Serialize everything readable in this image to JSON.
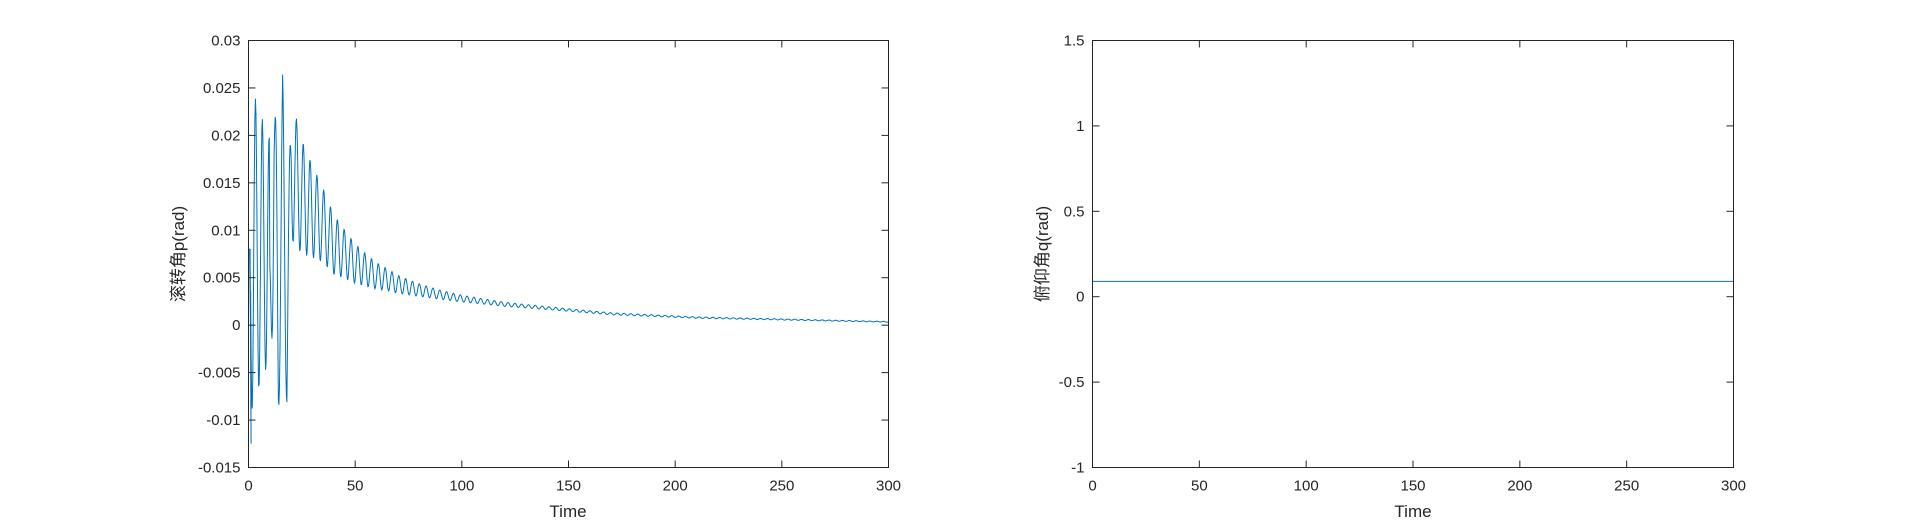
{
  "chart_data": [
    {
      "type": "line",
      "title": "",
      "xlabel": "Time",
      "ylabel": "滚转角p(rad)",
      "xlim": [
        0,
        300
      ],
      "ylim": [
        -0.015,
        0.03
      ],
      "xticks": [
        0,
        50,
        100,
        150,
        200,
        250,
        300
      ],
      "yticks": [
        -0.015,
        -0.01,
        -0.005,
        0,
        0.005,
        0.01,
        0.015,
        0.02,
        0.025,
        0.03
      ],
      "xtick_labels": [
        "0",
        "50",
        "100",
        "150",
        "200",
        "250",
        "300"
      ],
      "ytick_labels": [
        "-0.015",
        "-0.01",
        "-0.005",
        "0",
        "0.005",
        "0.01",
        "0.015",
        "0.02",
        "0.025",
        "0.03"
      ],
      "grid": false,
      "series": [
        {
          "color": "#0072BD",
          "description": "decaying oscillation",
          "x": [
            0,
            1,
            2,
            3,
            4,
            5,
            6,
            7,
            8,
            9,
            10,
            12,
            14,
            16,
            18,
            20,
            25,
            30,
            35,
            40,
            45,
            50,
            55,
            60,
            65,
            70,
            75,
            80,
            90,
            100,
            110,
            120,
            130,
            140,
            150,
            160,
            170,
            180,
            190,
            200,
            210,
            220,
            230,
            240,
            250,
            260,
            270,
            280,
            290,
            300
          ],
          "y": [
            0.0,
            0.026,
            -0.011,
            0.027,
            -0.006,
            0.024,
            -0.0055,
            0.022,
            -0.004,
            0.021,
            -0.003,
            0.0195,
            -0.002,
            0.0175,
            -0.0015,
            0.0165,
            0.0135,
            0.012,
            0.0105,
            0.0085,
            0.0075,
            0.0065,
            0.0058,
            0.0052,
            0.0048,
            0.0043,
            0.004,
            0.0037,
            0.0032,
            0.0028,
            0.0025,
            0.0022,
            0.002,
            0.0018,
            0.0016,
            0.0014,
            0.0012,
            0.0011,
            0.001,
            0.0009,
            0.0008,
            0.00075,
            0.0007,
            0.00065,
            0.0006,
            0.00055,
            0.0005,
            0.00045,
            0.0004,
            0.00035
          ],
          "envelope_note": ""
        }
      ]
    },
    {
      "type": "line",
      "title": "",
      "xlabel": "Time",
      "ylabel": "俯仰角q(rad)",
      "xlim": [
        0,
        300
      ],
      "ylim": [
        -1,
        1.5
      ],
      "xticks": [
        0,
        50,
        100,
        150,
        200,
        250,
        300
      ],
      "yticks": [
        -1,
        -0.5,
        0,
        0.5,
        1,
        1.5
      ],
      "xtick_labels": [
        "0",
        "50",
        "100",
        "150",
        "200",
        "250",
        "300"
      ],
      "ytick_labels": [
        "-1",
        "-0.5",
        "0",
        "0.5",
        "1",
        "1.5"
      ],
      "grid": false,
      "series": [
        {
          "color": "#0072BD",
          "x": [
            0,
            300
          ],
          "y": [
            0.09,
            0.09
          ]
        }
      ]
    }
  ]
}
